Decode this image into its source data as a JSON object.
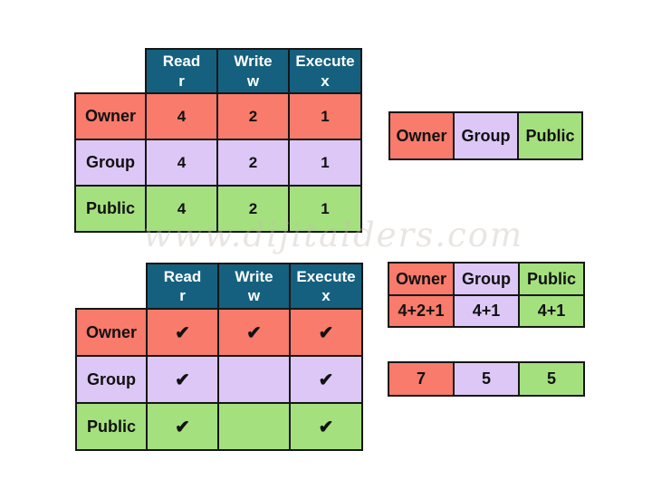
{
  "watermark": {
    "text": "www.dijitalders.com"
  },
  "colors": {
    "header_bg": "#15607F",
    "header_text": "#ffffff",
    "owner_bg": "#F87B6B",
    "group_bg": "#DCC7F6",
    "public_bg": "#A5E07F",
    "border": "#161616",
    "canvas_bg": "#ffffff"
  },
  "value_table": {
    "headers": [
      {
        "word": "Read",
        "letter": "r"
      },
      {
        "word": "Write",
        "letter": "w"
      },
      {
        "word": "Execute",
        "letter": "x"
      }
    ],
    "rows": [
      {
        "label": "Owner",
        "cells": [
          "4",
          "2",
          "1"
        ]
      },
      {
        "label": "Group",
        "cells": [
          "4",
          "2",
          "1"
        ]
      },
      {
        "label": "Public",
        "cells": [
          "4",
          "2",
          "1"
        ]
      }
    ]
  },
  "check_table": {
    "headers": [
      {
        "word": "Read",
        "letter": "r"
      },
      {
        "word": "Write",
        "letter": "w"
      },
      {
        "word": "Execute",
        "letter": "x"
      }
    ],
    "rows": [
      {
        "label": "Owner",
        "cells": [
          "✔",
          "✔",
          "✔"
        ]
      },
      {
        "label": "Group",
        "cells": [
          "✔",
          "",
          "✔"
        ]
      },
      {
        "label": "Public",
        "cells": [
          "✔",
          "",
          "✔"
        ]
      }
    ]
  },
  "classes_strip": {
    "cells": [
      "Owner",
      "Group",
      "Public"
    ]
  },
  "sum_table": {
    "headers": [
      "Owner",
      "Group",
      "Public"
    ],
    "values": [
      "4+2+1",
      "4+1",
      "4+1"
    ]
  },
  "result_strip": {
    "values": [
      "7",
      "5",
      "5"
    ]
  }
}
